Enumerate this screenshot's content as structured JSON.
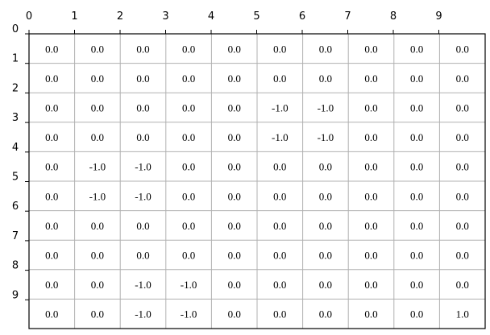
{
  "chart_data": {
    "type": "table",
    "title": "",
    "xlabel": "",
    "ylabel": "",
    "x_ticks": [
      "0",
      "1",
      "2",
      "3",
      "4",
      "5",
      "6",
      "7",
      "8",
      "9"
    ],
    "y_ticks": [
      "0",
      "1",
      "2",
      "3",
      "4",
      "5",
      "6",
      "7",
      "8",
      "9"
    ],
    "rows": 10,
    "cols": 10,
    "grid": true,
    "cells": [
      [
        "0.0",
        "0.0",
        "0.0",
        "0.0",
        "0.0",
        "0.0",
        "0.0",
        "0.0",
        "0.0",
        "0.0"
      ],
      [
        "0.0",
        "0.0",
        "0.0",
        "0.0",
        "0.0",
        "0.0",
        "0.0",
        "0.0",
        "0.0",
        "0.0"
      ],
      [
        "0.0",
        "0.0",
        "0.0",
        "0.0",
        "0.0",
        "-1.0",
        "-1.0",
        "0.0",
        "0.0",
        "0.0"
      ],
      [
        "0.0",
        "0.0",
        "0.0",
        "0.0",
        "0.0",
        "-1.0",
        "-1.0",
        "0.0",
        "0.0",
        "0.0"
      ],
      [
        "0.0",
        "-1.0",
        "-1.0",
        "0.0",
        "0.0",
        "0.0",
        "0.0",
        "0.0",
        "0.0",
        "0.0"
      ],
      [
        "0.0",
        "-1.0",
        "-1.0",
        "0.0",
        "0.0",
        "0.0",
        "0.0",
        "0.0",
        "0.0",
        "0.0"
      ],
      [
        "0.0",
        "0.0",
        "0.0",
        "0.0",
        "0.0",
        "0.0",
        "0.0",
        "0.0",
        "0.0",
        "0.0"
      ],
      [
        "0.0",
        "0.0",
        "0.0",
        "0.0",
        "0.0",
        "0.0",
        "0.0",
        "0.0",
        "0.0",
        "0.0"
      ],
      [
        "0.0",
        "0.0",
        "-1.0",
        "-1.0",
        "0.0",
        "0.0",
        "0.0",
        "0.0",
        "0.0",
        "0.0"
      ],
      [
        "0.0",
        "0.0",
        "-1.0",
        "-1.0",
        "0.0",
        "0.0",
        "0.0",
        "0.0",
        "0.0",
        "1.0"
      ]
    ],
    "colors": {
      "grid_line": "#b0b0b0",
      "frame": "#000000",
      "text": "#000000",
      "background": "#ffffff"
    }
  }
}
